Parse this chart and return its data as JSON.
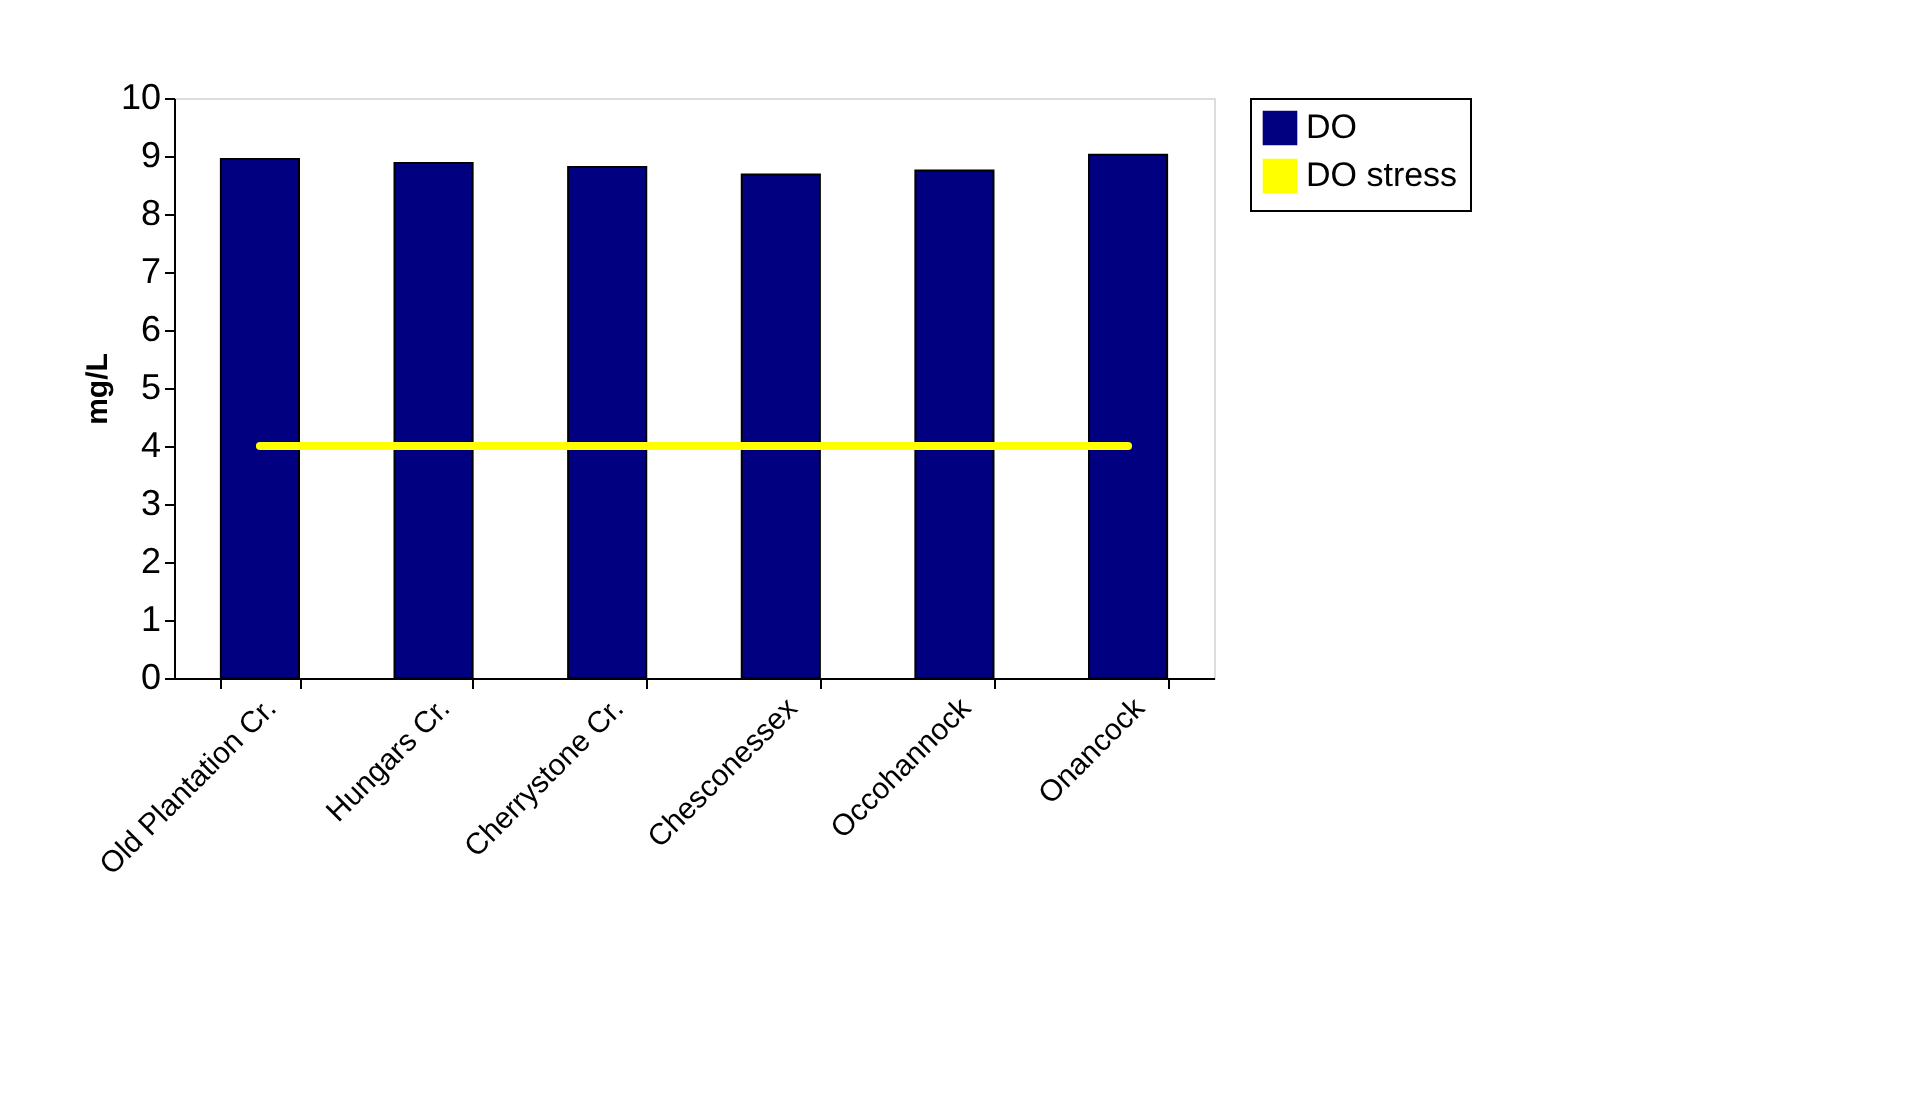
{
  "chart_data": {
    "type": "bar",
    "ylabel": "mg/L",
    "categories": [
      "Old Plantation Cr.",
      "Hungars Cr.",
      "Cherrystone Cr.",
      "Chesconessex",
      "Occohannock",
      "Onancock"
    ],
    "series": [
      {
        "name": "DO",
        "color": "#000080",
        "values": [
          8.95,
          8.88,
          8.81,
          8.68,
          8.75,
          9.02
        ]
      },
      {
        "name": "DO stress",
        "type": "line",
        "color": "#ffff00",
        "values": [
          4,
          4,
          4,
          4,
          4,
          4
        ]
      }
    ],
    "ylim": [
      0,
      10
    ],
    "yticks": [
      0,
      1,
      2,
      3,
      4,
      5,
      6,
      7,
      8,
      9,
      10
    ],
    "grid": false,
    "legend": "right"
  }
}
